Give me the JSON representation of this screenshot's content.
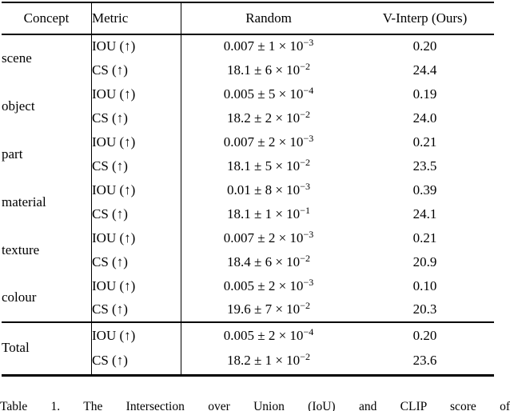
{
  "page": {
    "background": "#ffffff",
    "text_color": "#000000"
  },
  "table": {
    "headers": {
      "concept": "Concept",
      "metric": "Metric",
      "random": "Random",
      "vinterp": "V-Interp (Ours)"
    },
    "groups": [
      {
        "concept": "scene",
        "rows": [
          {
            "metric": "IOU (↑)",
            "random_main": "0.007 ± 1 × 10",
            "random_exp": "−3",
            "vinterp": "0.20"
          },
          {
            "metric": "CS (↑)",
            "random_main": "18.1 ± 6 × 10",
            "random_exp": "−2",
            "vinterp": "24.4"
          }
        ]
      },
      {
        "concept": "object",
        "rows": [
          {
            "metric": "IOU (↑)",
            "random_main": "0.005 ± 5 × 10",
            "random_exp": "−4",
            "vinterp": "0.19"
          },
          {
            "metric": "CS (↑)",
            "random_main": "18.2 ± 2 × 10",
            "random_exp": "−2",
            "vinterp": "24.0"
          }
        ]
      },
      {
        "concept": "part",
        "rows": [
          {
            "metric": "IOU (↑)",
            "random_main": "0.007 ± 2 × 10",
            "random_exp": "−3",
            "vinterp": "0.21"
          },
          {
            "metric": "CS (↑)",
            "random_main": "18.1 ± 5 × 10",
            "random_exp": "−2",
            "vinterp": "23.5"
          }
        ]
      },
      {
        "concept": "material",
        "rows": [
          {
            "metric": "IOU (↑)",
            "random_main": "0.01 ± 8 × 10",
            "random_exp": "−3",
            "vinterp": "0.39"
          },
          {
            "metric": "CS (↑)",
            "random_main": "18.1 ± 1 × 10",
            "random_exp": "−1",
            "vinterp": "24.1"
          }
        ]
      },
      {
        "concept": "texture",
        "rows": [
          {
            "metric": "IOU (↑)",
            "random_main": "0.007 ± 2 × 10",
            "random_exp": "−3",
            "vinterp": "0.21"
          },
          {
            "metric": "CS (↑)",
            "random_main": "18.4 ± 6 × 10",
            "random_exp": "−2",
            "vinterp": "20.9"
          }
        ]
      },
      {
        "concept": "colour",
        "rows": [
          {
            "metric": "IOU (↑)",
            "random_main": "0.005 ± 2 × 10",
            "random_exp": "−3",
            "vinterp": "0.10"
          },
          {
            "metric": "CS (↑)",
            "random_main": "19.6 ± 7 × 10",
            "random_exp": "−2",
            "vinterp": "20.3"
          }
        ]
      },
      {
        "concept": "Total",
        "rows": [
          {
            "metric": "IOU (↑)",
            "random_main": "0.005 ± 2 × 10",
            "random_exp": "−4",
            "vinterp": "0.20"
          },
          {
            "metric": "CS (↑)",
            "random_main": "18.2 ± 1 × 10",
            "random_exp": "−2",
            "vinterp": "23.6"
          }
        ]
      }
    ]
  },
  "caption": {
    "text": "Table 1. The Intersection over Union (IoU) and CLIP score of"
  }
}
